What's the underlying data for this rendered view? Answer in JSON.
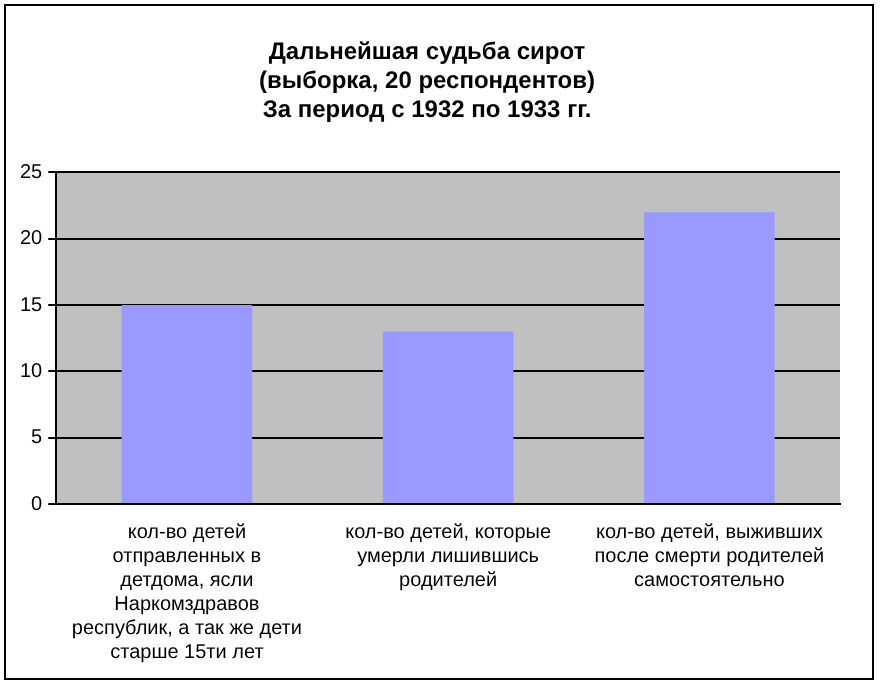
{
  "chart_data": {
    "type": "bar",
    "title": "Дальнейшая судьба сирот\n(выборка, 20 респондентов)\nЗа период с 1932 по 1933 гг.",
    "categories": [
      "кол-во детей отправленных в детдома, ясли Наркомздравов республик, а так же дети старше 15ти лет",
      "кол-во детей, которые умерли лишившись родителей",
      "кол-во детей, выживших после смерти родителей самостоятельно"
    ],
    "values": [
      15,
      13,
      22
    ],
    "color": "#9999ff",
    "ylim": [
      0,
      25
    ],
    "yticks": [
      0,
      5,
      10,
      15,
      20,
      25
    ],
    "grid": "y",
    "legend": false
  }
}
